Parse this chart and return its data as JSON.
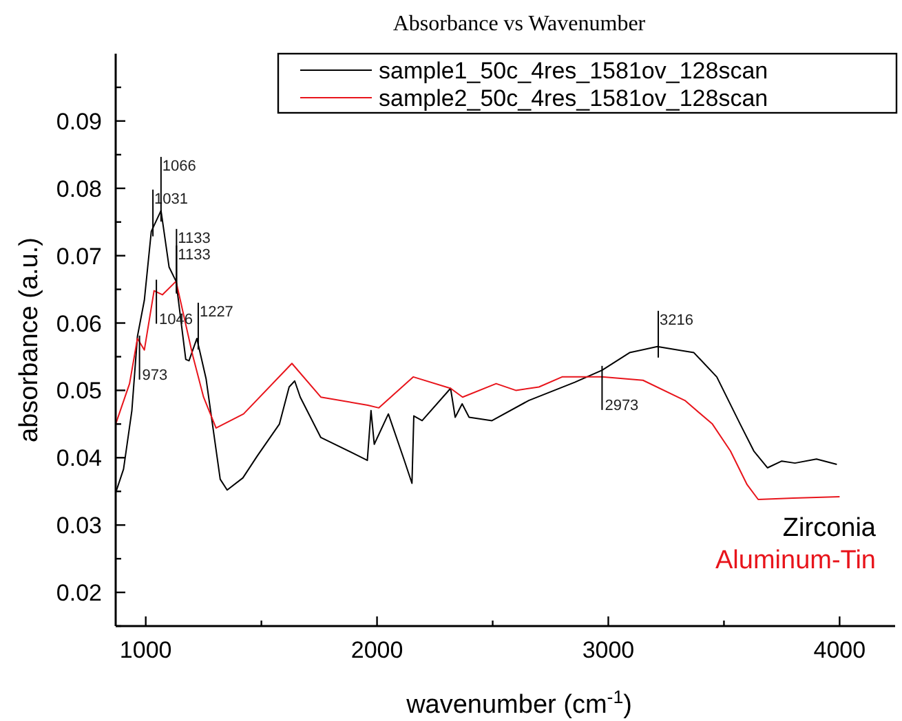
{
  "chart_data": {
    "type": "line",
    "title": "Absorbance vs Wavenumber",
    "xlabel": "wavenumber (cm$^{-1}$)",
    "ylabel": "absorbance (a.u.)",
    "xlim": [
      870,
      4240
    ],
    "ylim": [
      0.015,
      0.1
    ],
    "xticks": [
      1000,
      {
        "value": 1500,
        "label": null
      },
      2000,
      {
        "value": 2500,
        "label": null
      },
      3000,
      {
        "value": 3500,
        "label": null
      },
      4000
    ],
    "yticks": [
      {
        "value": 0.015,
        "label": null
      },
      0.02,
      {
        "value": 0.025,
        "label": null
      },
      0.03,
      {
        "value": 0.035,
        "label": null
      },
      0.04,
      {
        "value": 0.045,
        "label": null
      },
      0.05,
      {
        "value": 0.055,
        "label": null
      },
      0.06,
      {
        "value": 0.065,
        "label": null
      },
      0.07,
      {
        "value": 0.075,
        "label": null
      },
      0.08,
      {
        "value": 0.085,
        "label": null
      },
      0.09,
      {
        "value": 0.095,
        "label": null
      }
    ],
    "grid": false,
    "legend": "top right",
    "marker": "none",
    "line_style": "solid",
    "series": [
      {
        "name": "sample1_50c_4res_1581ov_128scan",
        "color": "#000000",
        "x": [
          870,
          904,
          940,
          964,
          994,
          1024,
          1066,
          1101,
          1131,
          1173,
          1187,
          1221,
          1261,
          1322,
          1352,
          1420,
          1483,
          1578,
          1620,
          1644,
          1668,
          1757,
          1918,
          1958,
          1974,
          1988,
          2049,
          2118,
          2151,
          2159,
          2195,
          2318,
          2338,
          2368,
          2398,
          2497,
          2656,
          2855,
          2973,
          3092,
          3212,
          3370,
          3469,
          3570,
          3629,
          3688,
          3750,
          3807,
          3900,
          3988
        ],
        "values": [
          0.0348,
          0.0383,
          0.047,
          0.058,
          0.0634,
          0.0736,
          0.0767,
          0.0683,
          0.0662,
          0.0546,
          0.0544,
          0.0577,
          0.0517,
          0.0368,
          0.0352,
          0.037,
          0.0403,
          0.045,
          0.0505,
          0.0514,
          0.049,
          0.043,
          0.0403,
          0.0396,
          0.047,
          0.042,
          0.0465,
          0.0396,
          0.0362,
          0.0462,
          0.0455,
          0.0503,
          0.046,
          0.048,
          0.046,
          0.0455,
          0.0485,
          0.0512,
          0.053,
          0.0556,
          0.0565,
          0.0556,
          0.052,
          0.045,
          0.041,
          0.0385,
          0.0395,
          0.0392,
          0.0398,
          0.039
        ]
      },
      {
        "name": "sample2_50c_4res_1581ov_128scan",
        "color": "#e8141b",
        "x": [
          870,
          930,
          964,
          994,
          1036,
          1072,
          1131,
          1203,
          1250,
          1304,
          1423,
          1632,
          1757,
          1960,
          2008,
          2157,
          2318,
          2370,
          2515,
          2600,
          2700,
          2800,
          2973,
          3150,
          3331,
          3450,
          3528,
          3600,
          3648,
          3800,
          4000
        ],
        "values": [
          0.045,
          0.051,
          0.0577,
          0.056,
          0.0648,
          0.0642,
          0.0662,
          0.0552,
          0.049,
          0.0444,
          0.0465,
          0.054,
          0.049,
          0.0478,
          0.0474,
          0.052,
          0.0503,
          0.049,
          0.051,
          0.05,
          0.0505,
          0.052,
          0.052,
          0.0515,
          0.0485,
          0.045,
          0.041,
          0.036,
          0.0338,
          0.034,
          0.0342
        ]
      }
    ],
    "annotations": [
      {
        "text": "973",
        "x": 973,
        "y": 0.0565
      },
      {
        "text": "1031",
        "x": 1031,
        "y": 0.0745
      },
      {
        "text": "1046",
        "x": 1046,
        "y": 0.0648
      },
      {
        "text": "1066",
        "x": 1066,
        "y": 0.0767
      },
      {
        "text": "1133",
        "x": 1133,
        "y": 0.0662
      },
      {
        "text": "1133",
        "x": 1133,
        "y": 0.066
      },
      {
        "text": "1227",
        "x": 1227,
        "y": 0.0577
      },
      {
        "text": "2973",
        "x": 2973,
        "y": 0.052
      },
      {
        "text": "3216",
        "x": 3216,
        "y": 0.0565
      },
      "Zirconia",
      "Aluminum-Tin"
    ]
  }
}
